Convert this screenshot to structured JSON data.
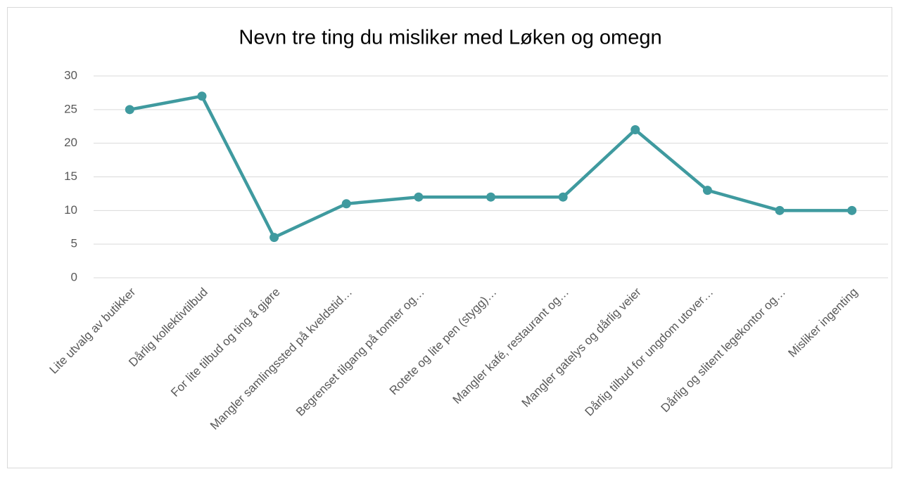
{
  "chart_data": {
    "type": "line",
    "title": "Nevn tre ting du misliker med Løken og omegn",
    "categories": [
      "Lite utvalg av butikker",
      "Dårlig kollektivtilbud",
      "For lite tilbud og ting å gjøre",
      "Mangler samlingssted på kveldstid…",
      "Begrenset tilgang på tomter og…",
      "Rotete og lite pen (stygg)…",
      "Mangler kafé,  restaurant og…",
      "Mangler gatelys og dårlig veier",
      "Dårlig tilbud for ungdom utover…",
      "Dårlig og slitent legekontor og…",
      "Misliker ingenting"
    ],
    "values": [
      25,
      27,
      6,
      11,
      12,
      12,
      12,
      22,
      13,
      10,
      10
    ],
    "color": "#3f9a9f",
    "ylim": [
      0,
      30
    ],
    "yticks": [
      0,
      5,
      10,
      15,
      20,
      25,
      30
    ],
    "grid": true
  }
}
